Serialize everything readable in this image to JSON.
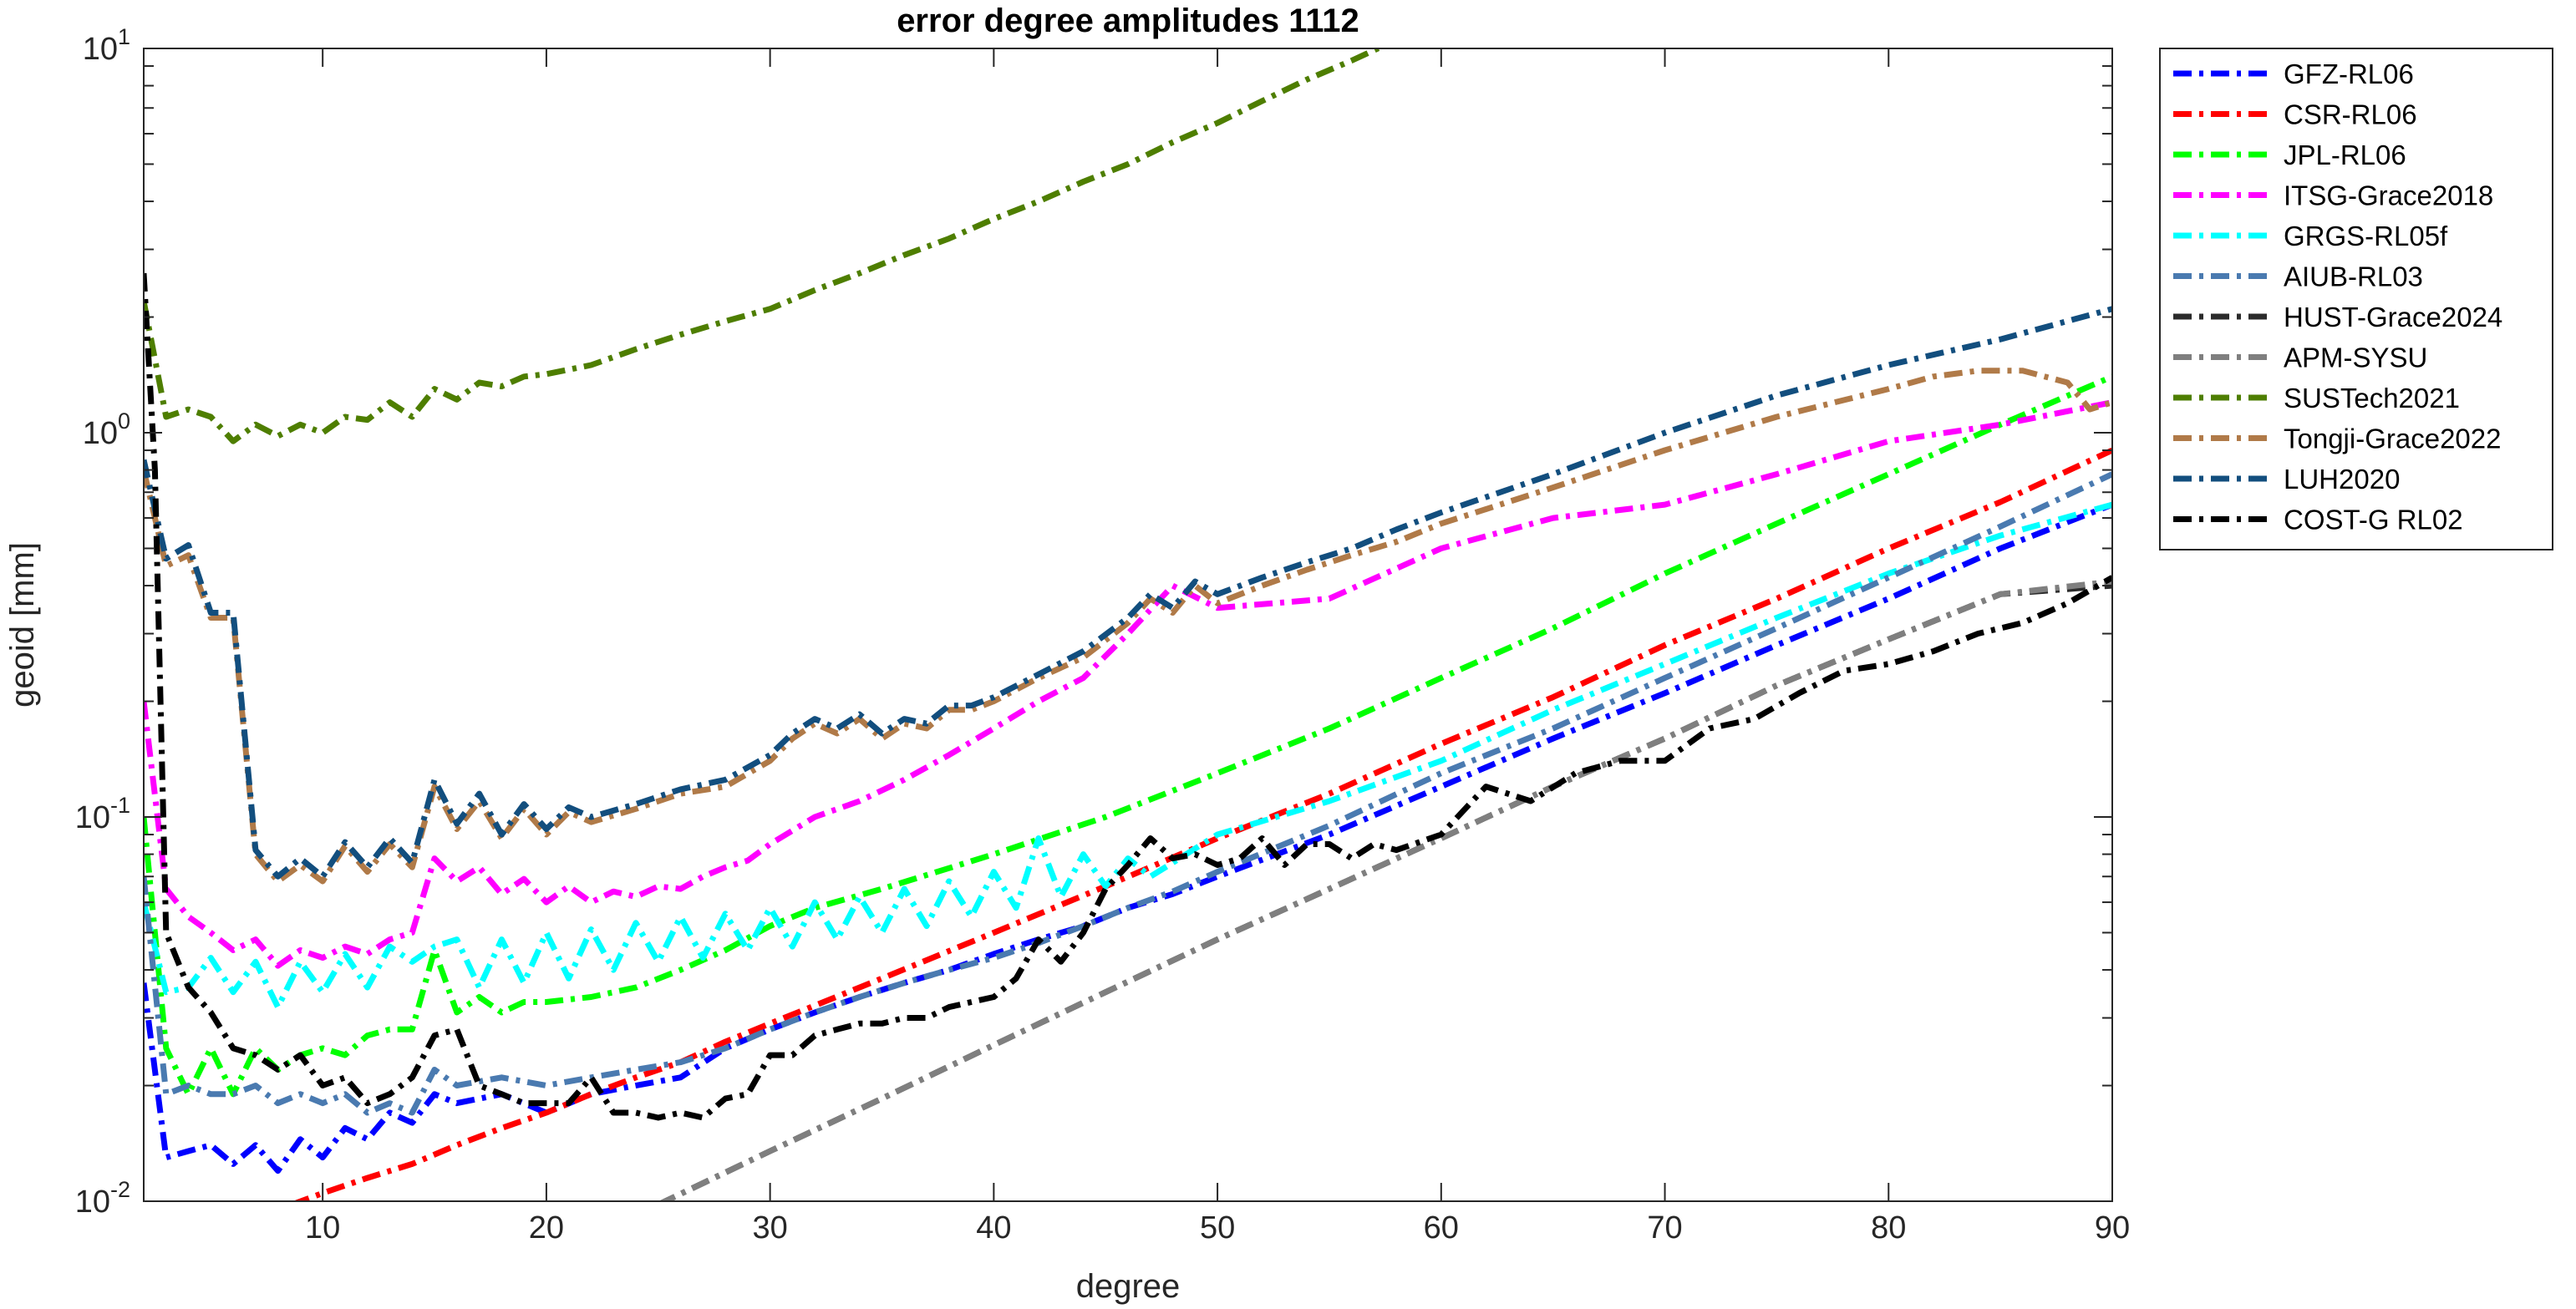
{
  "chart_data": {
    "type": "line",
    "title": "error degree amplitudes 1112",
    "xlabel": "degree",
    "ylabel": "geoid [mm]",
    "xlim": [
      2,
      90
    ],
    "ylim": [
      0.01,
      10
    ],
    "yscale": "log",
    "grid": false,
    "legend_position": "outside-right-top",
    "xticks": [
      10,
      20,
      30,
      40,
      50,
      60,
      70,
      80,
      90
    ],
    "xtick_labels": [
      "10",
      "20",
      "30",
      "40",
      "50",
      "60",
      "70",
      "80",
      "90"
    ],
    "yticks": [
      0.01,
      0.1,
      1,
      10
    ],
    "ytick_labels": [
      {
        "base": "10",
        "exp": "-2"
      },
      {
        "base": "10",
        "exp": "-1"
      },
      {
        "base": "10",
        "exp": "0"
      },
      {
        "base": "10",
        "exp": "1"
      }
    ],
    "series": [
      {
        "name": "GFZ-RL06",
        "color": "#0000ff",
        "x": [
          2,
          3,
          4,
          5,
          6,
          7,
          8,
          9,
          10,
          11,
          12,
          13,
          14,
          15,
          16,
          18,
          20,
          22,
          24,
          26,
          28,
          30,
          32,
          34,
          36,
          38,
          40,
          42,
          44,
          46,
          48,
          50,
          55,
          60,
          65,
          70,
          75,
          80,
          85,
          90
        ],
        "y": [
          0.037,
          0.013,
          0.0135,
          0.014,
          0.0125,
          0.014,
          0.012,
          0.0145,
          0.013,
          0.0155,
          0.0145,
          0.017,
          0.016,
          0.019,
          0.018,
          0.019,
          0.017,
          0.019,
          0.02,
          0.021,
          0.025,
          0.028,
          0.031,
          0.034,
          0.037,
          0.04,
          0.044,
          0.048,
          0.052,
          0.058,
          0.063,
          0.07,
          0.09,
          0.12,
          0.16,
          0.21,
          0.28,
          0.37,
          0.5,
          0.65
        ]
      },
      {
        "name": "CSR-RL06",
        "color": "#ff0000",
        "x": [
          7,
          8,
          10,
          12,
          14,
          16,
          18,
          20,
          22,
          24,
          26,
          28,
          30,
          35,
          40,
          45,
          50,
          55,
          60,
          65,
          70,
          75,
          80,
          85,
          90
        ],
        "y": [
          0.0098,
          0.0095,
          0.0105,
          0.0115,
          0.0125,
          0.014,
          0.0155,
          0.017,
          0.019,
          0.021,
          0.023,
          0.026,
          0.029,
          0.038,
          0.05,
          0.066,
          0.088,
          0.115,
          0.155,
          0.205,
          0.28,
          0.37,
          0.5,
          0.66,
          0.9
        ]
      },
      {
        "name": "JPL-RL06",
        "color": "#00ff00",
        "x": [
          2,
          3,
          4,
          5,
          6,
          7,
          8,
          9,
          10,
          11,
          12,
          13,
          14,
          15,
          16,
          17,
          18,
          19,
          20,
          22,
          24,
          26,
          28,
          30,
          32,
          35,
          40,
          45,
          50,
          55,
          60,
          65,
          70,
          75,
          80,
          85,
          90
        ],
        "y": [
          0.1,
          0.025,
          0.019,
          0.025,
          0.019,
          0.025,
          0.022,
          0.024,
          0.025,
          0.024,
          0.027,
          0.028,
          0.028,
          0.045,
          0.031,
          0.034,
          0.031,
          0.033,
          0.033,
          0.034,
          0.036,
          0.04,
          0.045,
          0.052,
          0.058,
          0.065,
          0.08,
          0.1,
          0.13,
          0.17,
          0.23,
          0.31,
          0.43,
          0.58,
          0.78,
          1.05,
          1.4
        ]
      },
      {
        "name": "ITSG-Grace2018",
        "color": "#ff00ff",
        "x": [
          2,
          3,
          4,
          5,
          6,
          7,
          8,
          9,
          10,
          11,
          12,
          13,
          14,
          15,
          16,
          17,
          18,
          19,
          20,
          21,
          22,
          23,
          24,
          25,
          26,
          27,
          28,
          29,
          30,
          32,
          34,
          36,
          38,
          40,
          42,
          44,
          46,
          48,
          50,
          55,
          60,
          65,
          70,
          75,
          80,
          85,
          90
        ],
        "y": [
          0.2,
          0.065,
          0.055,
          0.05,
          0.045,
          0.048,
          0.041,
          0.045,
          0.043,
          0.046,
          0.044,
          0.048,
          0.05,
          0.078,
          0.068,
          0.074,
          0.063,
          0.069,
          0.06,
          0.066,
          0.06,
          0.064,
          0.062,
          0.066,
          0.065,
          0.07,
          0.074,
          0.077,
          0.085,
          0.1,
          0.11,
          0.125,
          0.145,
          0.17,
          0.2,
          0.23,
          0.3,
          0.4,
          0.35,
          0.37,
          0.5,
          0.6,
          0.65,
          0.78,
          0.95,
          1.05,
          1.2
        ]
      },
      {
        "name": "GRGS-RL05f",
        "color": "#00ffff",
        "x": [
          2,
          3,
          4,
          5,
          6,
          7,
          8,
          9,
          10,
          11,
          12,
          13,
          14,
          15,
          16,
          17,
          18,
          19,
          20,
          21,
          22,
          23,
          24,
          25,
          26,
          27,
          28,
          29,
          30,
          31,
          32,
          33,
          34,
          35,
          36,
          37,
          38,
          39,
          40,
          41,
          42,
          43,
          44,
          45,
          46,
          47,
          48,
          50,
          55,
          60,
          65,
          70,
          75,
          80,
          85,
          90
        ],
        "y": [
          0.06,
          0.035,
          0.036,
          0.043,
          0.035,
          0.042,
          0.032,
          0.042,
          0.035,
          0.044,
          0.036,
          0.046,
          0.042,
          0.046,
          0.048,
          0.036,
          0.048,
          0.037,
          0.05,
          0.038,
          0.051,
          0.04,
          0.053,
          0.042,
          0.055,
          0.043,
          0.056,
          0.045,
          0.058,
          0.046,
          0.06,
          0.048,
          0.062,
          0.05,
          0.065,
          0.052,
          0.068,
          0.055,
          0.072,
          0.058,
          0.088,
          0.062,
          0.08,
          0.066,
          0.078,
          0.07,
          0.076,
          0.09,
          0.11,
          0.14,
          0.19,
          0.25,
          0.33,
          0.43,
          0.54,
          0.65
        ]
      },
      {
        "name": "AIUB-RL03",
        "color": "#4a7ab0",
        "x": [
          2,
          3,
          4,
          5,
          6,
          7,
          8,
          9,
          10,
          11,
          12,
          13,
          14,
          15,
          16,
          18,
          20,
          22,
          24,
          26,
          28,
          30,
          32,
          34,
          36,
          38,
          40,
          42,
          44,
          46,
          48,
          50,
          55,
          60,
          65,
          70,
          75,
          80,
          85,
          90
        ],
        "y": [
          0.07,
          0.019,
          0.02,
          0.019,
          0.019,
          0.02,
          0.018,
          0.019,
          0.018,
          0.019,
          0.017,
          0.018,
          0.017,
          0.022,
          0.02,
          0.021,
          0.02,
          0.021,
          0.022,
          0.023,
          0.025,
          0.028,
          0.031,
          0.034,
          0.037,
          0.04,
          0.043,
          0.047,
          0.052,
          0.058,
          0.064,
          0.072,
          0.095,
          0.13,
          0.17,
          0.23,
          0.31,
          0.42,
          0.57,
          0.78
        ]
      },
      {
        "name": "HUST-Grace2024",
        "color": "#2b2b2b",
        "x": [
          25,
          30,
          35,
          40,
          45,
          50,
          55,
          60,
          65,
          70,
          75,
          80,
          85,
          90
        ],
        "y": [
          0.0098,
          0.0135,
          0.0185,
          0.0255,
          0.035,
          0.048,
          0.065,
          0.088,
          0.12,
          0.16,
          0.22,
          0.29,
          0.38,
          0.4
        ]
      },
      {
        "name": "APM-SYSU",
        "color": "#7f7f7f",
        "x": [
          25,
          30,
          35,
          40,
          45,
          50,
          55,
          60,
          65,
          70,
          75,
          80,
          85,
          90
        ],
        "y": [
          0.0098,
          0.0135,
          0.0185,
          0.0255,
          0.035,
          0.048,
          0.065,
          0.088,
          0.12,
          0.16,
          0.22,
          0.29,
          0.38,
          0.41
        ]
      },
      {
        "name": "SUSTech2021",
        "color": "#4e7e00",
        "x": [
          2,
          3,
          4,
          5,
          6,
          7,
          8,
          9,
          10,
          11,
          12,
          13,
          14,
          15,
          16,
          17,
          18,
          19,
          20,
          22,
          24,
          26,
          28,
          30,
          32,
          34,
          36,
          38,
          40,
          42,
          44,
          46,
          48,
          50,
          52,
          54,
          56,
          57.5
        ],
        "y": [
          2.2,
          1.1,
          1.15,
          1.1,
          0.95,
          1.05,
          0.98,
          1.05,
          1.0,
          1.1,
          1.08,
          1.2,
          1.1,
          1.3,
          1.22,
          1.35,
          1.32,
          1.4,
          1.42,
          1.5,
          1.65,
          1.8,
          1.95,
          2.1,
          2.35,
          2.6,
          2.9,
          3.2,
          3.6,
          4.0,
          4.5,
          5.0,
          5.7,
          6.4,
          7.3,
          8.3,
          9.3,
          10.2
        ]
      },
      {
        "name": "Tongji-Grace2022",
        "color": "#b07a48",
        "x": [
          2,
          3,
          4,
          5,
          6,
          7,
          8,
          9,
          10,
          11,
          12,
          13,
          14,
          15,
          16,
          17,
          18,
          19,
          20,
          21,
          22,
          24,
          26,
          28,
          30,
          31,
          32,
          33,
          34,
          35,
          36,
          37,
          38,
          39,
          40,
          42,
          44,
          46,
          47,
          48,
          49,
          50,
          52,
          54,
          56,
          58,
          60,
          65,
          70,
          75,
          80,
          82,
          84,
          86,
          88,
          89,
          90
        ],
        "y": [
          0.8,
          0.45,
          0.48,
          0.33,
          0.33,
          0.08,
          0.068,
          0.075,
          0.068,
          0.084,
          0.072,
          0.085,
          0.074,
          0.12,
          0.093,
          0.11,
          0.088,
          0.105,
          0.09,
          0.103,
          0.097,
          0.105,
          0.115,
          0.12,
          0.14,
          0.16,
          0.175,
          0.165,
          0.18,
          0.16,
          0.175,
          0.17,
          0.19,
          0.19,
          0.2,
          0.23,
          0.26,
          0.32,
          0.37,
          0.34,
          0.4,
          0.36,
          0.4,
          0.44,
          0.48,
          0.52,
          0.58,
          0.72,
          0.9,
          1.1,
          1.3,
          1.4,
          1.45,
          1.45,
          1.35,
          1.15,
          1.2
        ]
      },
      {
        "name": "LUH2020",
        "color": "#124e7e",
        "x": [
          2,
          3,
          4,
          5,
          6,
          7,
          8,
          9,
          10,
          11,
          12,
          13,
          14,
          15,
          16,
          17,
          18,
          19,
          20,
          21,
          22,
          24,
          26,
          28,
          30,
          31,
          32,
          33,
          34,
          35,
          36,
          37,
          38,
          39,
          40,
          42,
          44,
          46,
          47,
          48,
          49,
          50,
          52,
          54,
          56,
          58,
          60,
          65,
          70,
          75,
          80,
          85,
          90
        ],
        "y": [
          0.85,
          0.47,
          0.51,
          0.34,
          0.34,
          0.082,
          0.07,
          0.078,
          0.07,
          0.086,
          0.074,
          0.088,
          0.076,
          0.125,
          0.096,
          0.115,
          0.09,
          0.108,
          0.093,
          0.106,
          0.1,
          0.108,
          0.118,
          0.125,
          0.145,
          0.165,
          0.18,
          0.17,
          0.185,
          0.165,
          0.18,
          0.175,
          0.195,
          0.195,
          0.205,
          0.235,
          0.27,
          0.33,
          0.38,
          0.35,
          0.41,
          0.38,
          0.42,
          0.46,
          0.5,
          0.56,
          0.62,
          0.78,
          1.0,
          1.25,
          1.5,
          1.75,
          2.1
        ]
      },
      {
        "name": "COST-G RL02",
        "color": "#000000",
        "x": [
          2,
          2.5,
          3,
          4,
          5,
          6,
          7,
          8,
          9,
          10,
          11,
          12,
          13,
          14,
          15,
          16,
          17,
          18,
          19,
          20,
          21,
          22,
          23,
          24,
          25,
          26,
          27,
          28,
          29,
          30,
          31,
          32,
          33,
          34,
          35,
          36,
          37,
          38,
          39,
          40,
          41,
          42,
          43,
          44,
          45,
          46,
          47,
          48,
          49,
          50,
          51,
          52,
          53,
          54,
          55,
          56,
          57,
          58,
          60,
          62,
          64,
          66,
          68,
          70,
          72,
          74,
          76,
          78,
          80,
          82,
          84,
          86,
          88,
          90
        ],
        "y": [
          2.6,
          0.8,
          0.05,
          0.036,
          0.031,
          0.025,
          0.024,
          0.022,
          0.024,
          0.02,
          0.021,
          0.018,
          0.019,
          0.021,
          0.027,
          0.028,
          0.02,
          0.019,
          0.018,
          0.018,
          0.018,
          0.021,
          0.017,
          0.017,
          0.0165,
          0.017,
          0.0165,
          0.0185,
          0.019,
          0.024,
          0.024,
          0.027,
          0.028,
          0.029,
          0.029,
          0.03,
          0.03,
          0.032,
          0.033,
          0.034,
          0.038,
          0.048,
          0.042,
          0.05,
          0.065,
          0.075,
          0.088,
          0.078,
          0.08,
          0.075,
          0.078,
          0.088,
          0.075,
          0.085,
          0.085,
          0.078,
          0.085,
          0.082,
          0.09,
          0.12,
          0.11,
          0.13,
          0.14,
          0.14,
          0.17,
          0.18,
          0.21,
          0.24,
          0.25,
          0.27,
          0.3,
          0.32,
          0.36,
          0.42
        ]
      }
    ]
  }
}
